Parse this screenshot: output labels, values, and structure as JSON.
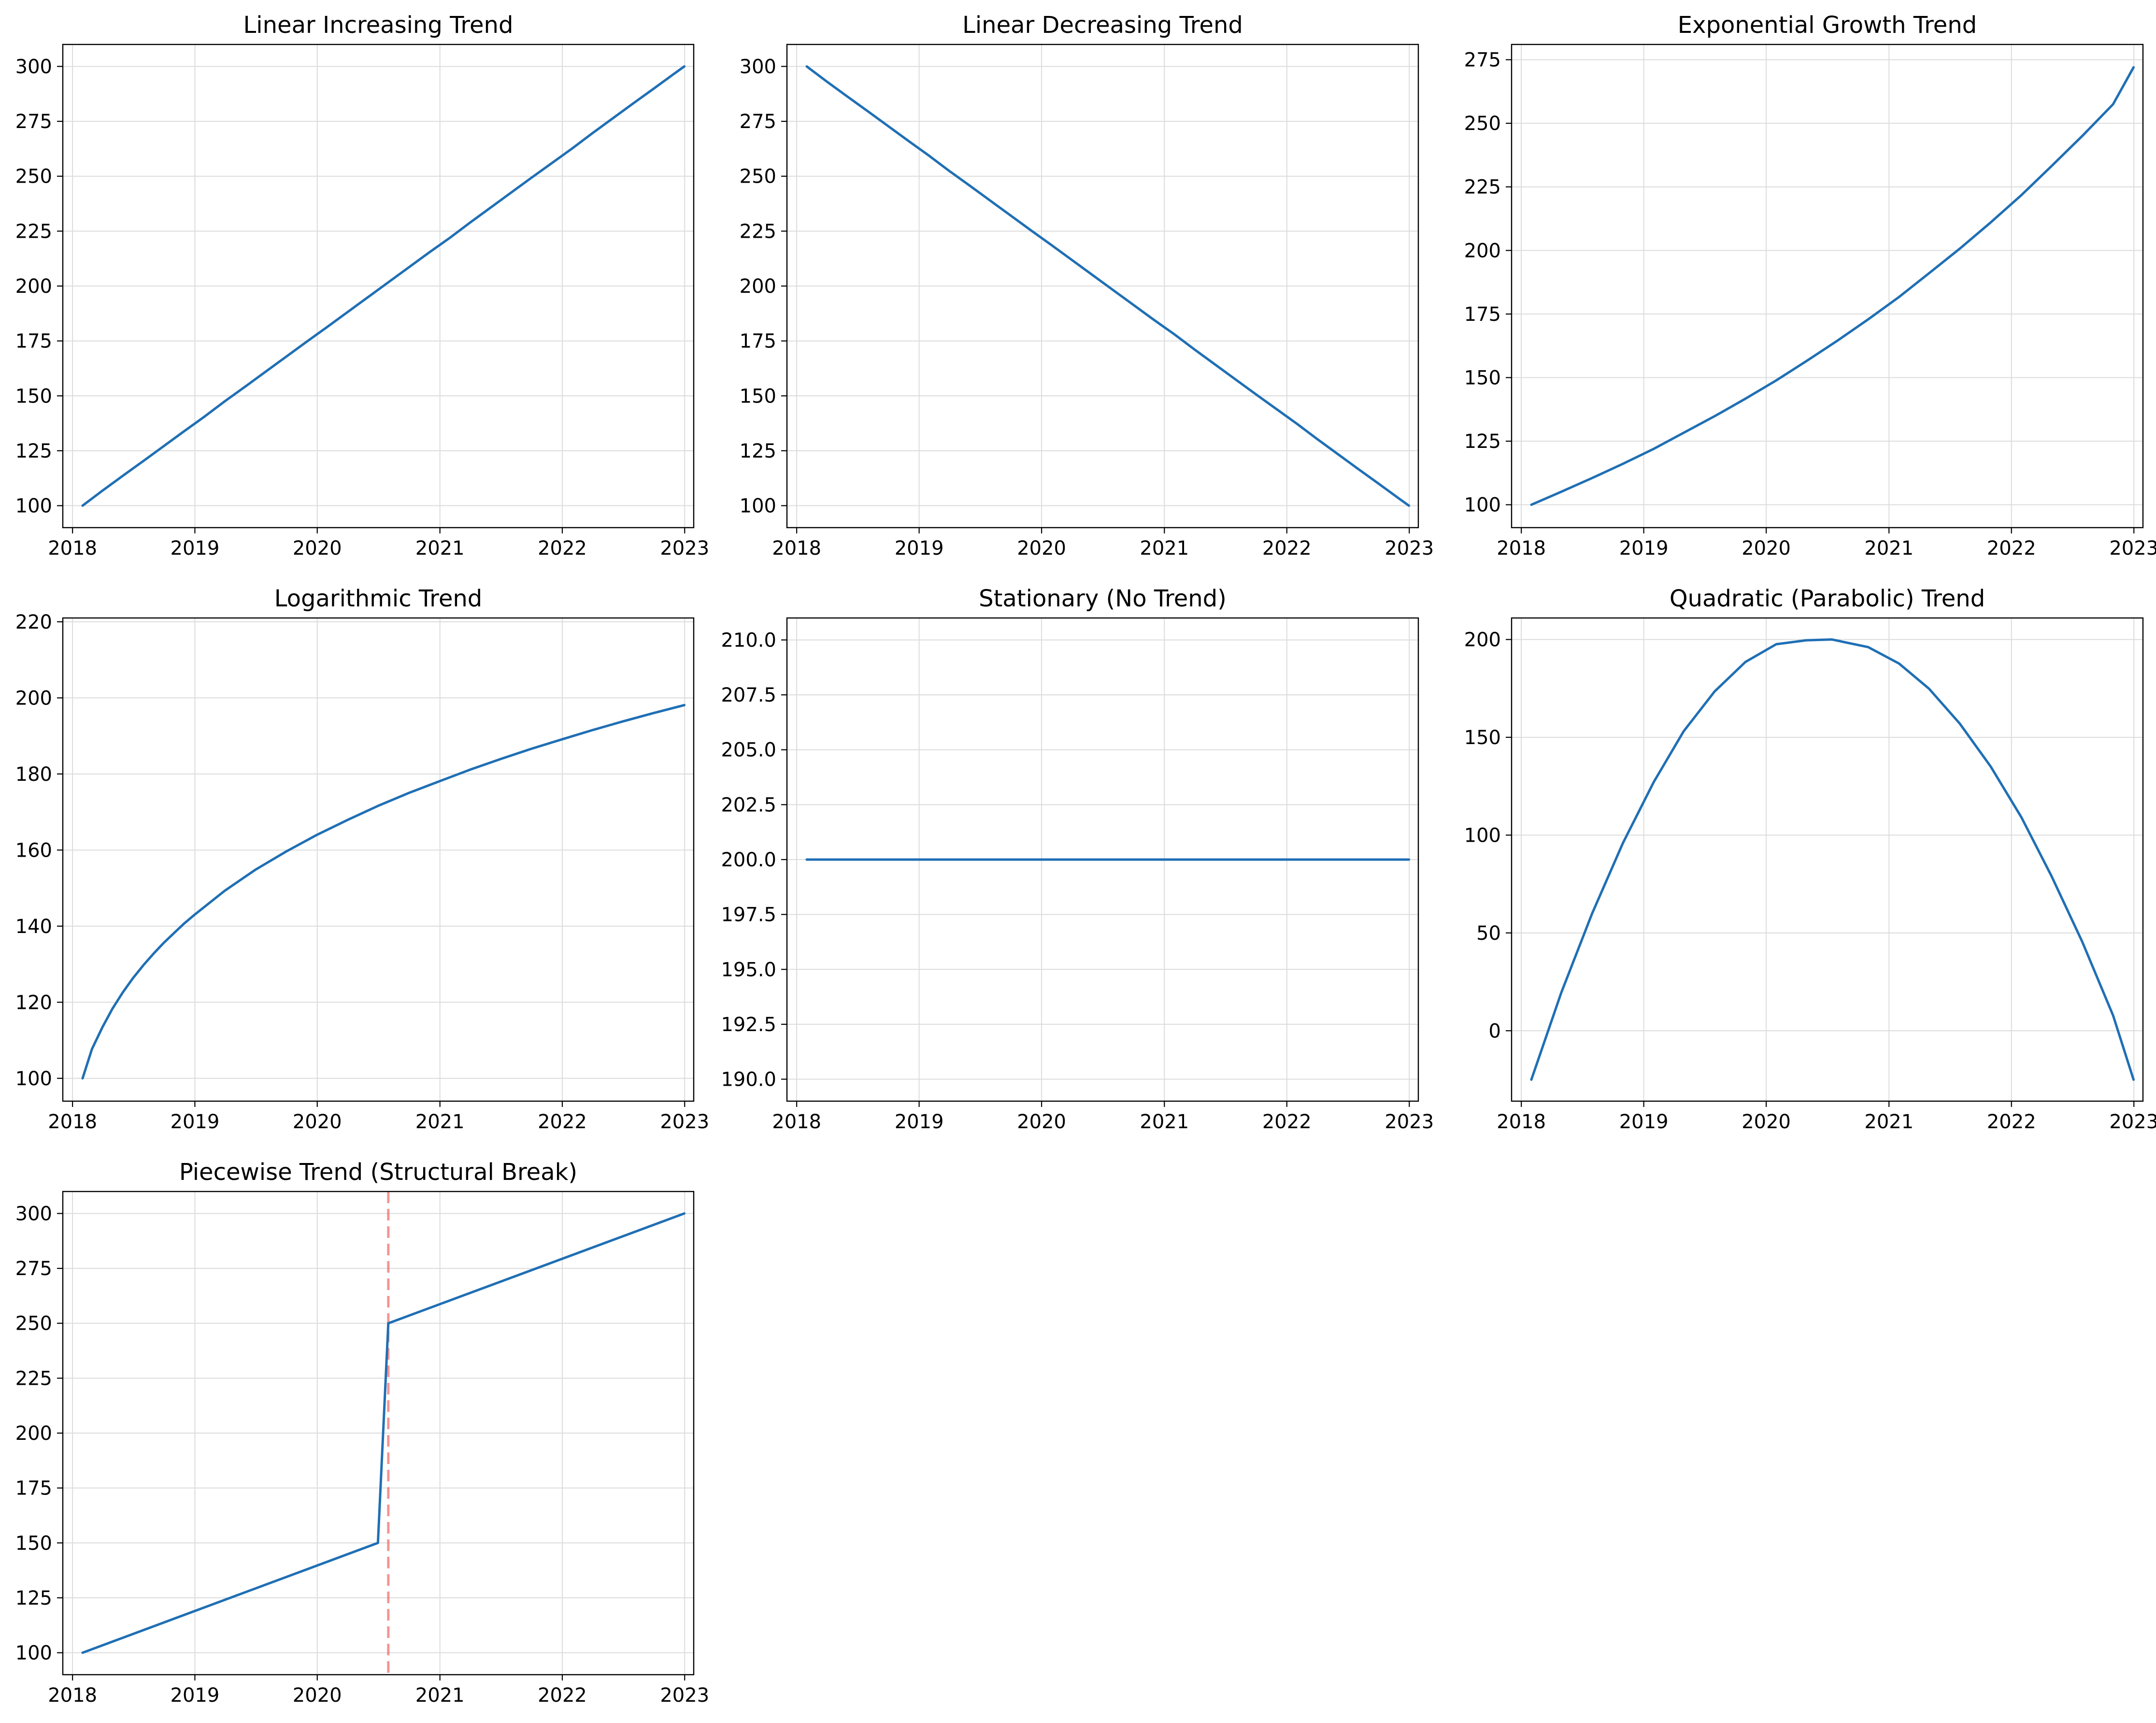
{
  "colors": {
    "series": "#1f6fb4",
    "break_line": "#f15a5a",
    "grid": "#dcdcdc",
    "frame": "#000000",
    "background": "#ffffff"
  },
  "chart_data": [
    {
      "type": "line",
      "title": "Linear Increasing Trend",
      "xlabel": "",
      "ylabel": "",
      "xlim": [
        "2017-12-03",
        "2023-01-28"
      ],
      "ylim": [
        90,
        310
      ],
      "x_ticks": [
        "2018",
        "2019",
        "2020",
        "2021",
        "2022",
        "2023"
      ],
      "y_ticks": [
        "100",
        "125",
        "150",
        "175",
        "200",
        "225",
        "250",
        "275",
        "300"
      ],
      "grid": true,
      "series": [
        {
          "x": [
            "2018-01-31",
            "2018-03-31",
            "2018-05-31",
            "2018-07-31",
            "2018-09-30",
            "2018-11-30",
            "2019-01-31",
            "2019-03-31",
            "2019-05-31",
            "2019-07-31",
            "2019-09-30",
            "2019-11-30",
            "2020-01-31",
            "2020-03-31",
            "2020-05-31",
            "2020-07-31",
            "2020-09-30",
            "2020-11-30",
            "2021-01-31",
            "2021-03-31",
            "2021-05-31",
            "2021-07-31",
            "2021-09-30",
            "2021-11-30",
            "2022-01-31",
            "2022-03-31",
            "2022-05-31",
            "2022-07-31",
            "2022-09-30",
            "2022-11-30",
            "2022-12-31"
          ],
          "values": [
            100,
            106.8,
            113.6,
            120.3,
            127.1,
            133.9,
            140.7,
            147.5,
            154.2,
            161.0,
            167.8,
            174.6,
            181.4,
            188.1,
            194.9,
            201.7,
            208.5,
            215.3,
            222.0,
            228.8,
            235.6,
            242.4,
            249.2,
            255.9,
            262.7,
            269.5,
            276.3,
            283.1,
            289.8,
            296.6,
            300
          ]
        }
      ]
    },
    {
      "type": "line",
      "title": "Linear Decreasing Trend",
      "xlabel": "",
      "ylabel": "",
      "xlim": [
        "2017-12-03",
        "2023-01-28"
      ],
      "ylim": [
        90,
        310
      ],
      "x_ticks": [
        "2018",
        "2019",
        "2020",
        "2021",
        "2022",
        "2023"
      ],
      "y_ticks": [
        "100",
        "125",
        "150",
        "175",
        "200",
        "225",
        "250",
        "275",
        "300"
      ],
      "grid": true,
      "series": [
        {
          "x": [
            "2018-01-31",
            "2018-03-31",
            "2018-05-31",
            "2018-07-31",
            "2018-09-30",
            "2018-11-30",
            "2019-01-31",
            "2019-03-31",
            "2019-05-31",
            "2019-07-31",
            "2019-09-30",
            "2019-11-30",
            "2020-01-31",
            "2020-03-31",
            "2020-05-31",
            "2020-07-31",
            "2020-09-30",
            "2020-11-30",
            "2021-01-31",
            "2021-03-31",
            "2021-05-31",
            "2021-07-31",
            "2021-09-30",
            "2021-11-30",
            "2022-01-31",
            "2022-03-31",
            "2022-05-31",
            "2022-07-31",
            "2022-09-30",
            "2022-11-30",
            "2022-12-31"
          ],
          "values": [
            300,
            293.2,
            286.4,
            279.7,
            272.9,
            266.1,
            259.3,
            252.5,
            245.8,
            239.0,
            232.2,
            225.4,
            218.6,
            211.9,
            205.1,
            198.3,
            191.5,
            184.7,
            178.0,
            171.2,
            164.4,
            157.6,
            150.8,
            144.1,
            137.3,
            130.5,
            123.7,
            116.9,
            110.2,
            103.4,
            100
          ]
        }
      ]
    },
    {
      "type": "line",
      "title": "Exponential Growth Trend",
      "xlabel": "",
      "ylabel": "",
      "xlim": [
        "2017-12-03",
        "2023-01-28"
      ],
      "ylim": [
        91,
        281
      ],
      "x_ticks": [
        "2018",
        "2019",
        "2020",
        "2021",
        "2022",
        "2023"
      ],
      "y_ticks": [
        "100",
        "125",
        "150",
        "175",
        "200",
        "225",
        "250",
        "275"
      ],
      "grid": true,
      "series": [
        {
          "x": [
            "2018-01-31",
            "2018-04-30",
            "2018-07-31",
            "2018-10-31",
            "2019-01-31",
            "2019-04-30",
            "2019-07-31",
            "2019-10-31",
            "2020-01-31",
            "2020-04-30",
            "2020-07-31",
            "2020-10-31",
            "2021-01-31",
            "2021-04-30",
            "2021-07-31",
            "2021-10-31",
            "2022-01-31",
            "2022-04-30",
            "2022-07-31",
            "2022-10-31",
            "2022-12-31"
          ],
          "values": [
            100,
            105.1,
            110.5,
            116.1,
            122.0,
            128.3,
            134.8,
            141.7,
            148.9,
            156.5,
            164.5,
            172.9,
            181.7,
            191.0,
            200.7,
            211.0,
            221.8,
            233.1,
            245.0,
            257.5,
            272
          ]
        }
      ]
    },
    {
      "type": "line",
      "title": "Logarithmic Trend",
      "xlabel": "",
      "ylabel": "",
      "xlim": [
        "2017-12-03",
        "2023-01-28"
      ],
      "ylim": [
        94,
        221
      ],
      "x_ticks": [
        "2018",
        "2019",
        "2020",
        "2021",
        "2022",
        "2023"
      ],
      "y_ticks": [
        "100",
        "120",
        "140",
        "160",
        "180",
        "200",
        "220"
      ],
      "grid": true,
      "series": [
        {
          "x": [
            "2018-01-31",
            "2018-02-28",
            "2018-03-31",
            "2018-04-30",
            "2018-05-31",
            "2018-06-30",
            "2018-07-31",
            "2018-08-31",
            "2018-09-30",
            "2018-10-31",
            "2018-11-30",
            "2018-12-31",
            "2019-03-31",
            "2019-06-30",
            "2019-09-30",
            "2019-12-31",
            "2020-03-31",
            "2020-06-30",
            "2020-09-30",
            "2020-12-31",
            "2021-03-31",
            "2021-06-30",
            "2021-09-30",
            "2021-12-31",
            "2022-03-31",
            "2022-06-30",
            "2022-09-30",
            "2022-12-31"
          ],
          "values": [
            100,
            107.7,
            113.4,
            118.3,
            122.6,
            126.3,
            129.7,
            132.8,
            135.6,
            138.2,
            140.7,
            143.0,
            149.3,
            154.8,
            159.6,
            164.0,
            167.9,
            171.6,
            175.0,
            178.1,
            181.1,
            183.9,
            186.6,
            189.1,
            191.5,
            193.8,
            196.0,
            198.1
          ]
        }
      ]
    },
    {
      "type": "line",
      "title": "Stationary (No Trend)",
      "xlabel": "",
      "ylabel": "",
      "xlim": [
        "2017-12-03",
        "2023-01-28"
      ],
      "ylim": [
        189,
        211
      ],
      "x_ticks": [
        "2018",
        "2019",
        "2020",
        "2021",
        "2022",
        "2023"
      ],
      "y_ticks": [
        "190.0",
        "192.5",
        "195.0",
        "197.5",
        "200.0",
        "202.5",
        "205.0",
        "207.5",
        "210.0"
      ],
      "grid": true,
      "series": [
        {
          "x": [
            "2018-01-31",
            "2022-12-31"
          ],
          "values": [
            200,
            200
          ]
        }
      ]
    },
    {
      "type": "line",
      "title": "Quadratic (Parabolic) Trend",
      "xlabel": "",
      "ylabel": "",
      "xlim": [
        "2017-12-03",
        "2023-01-28"
      ],
      "ylim": [
        -36,
        211
      ],
      "x_ticks": [
        "2018",
        "2019",
        "2020",
        "2021",
        "2022",
        "2023"
      ],
      "y_ticks": [
        "0",
        "50",
        "100",
        "150",
        "200"
      ],
      "grid": true,
      "series": [
        {
          "x": [
            "2018-01-31",
            "2018-04-30",
            "2018-07-31",
            "2018-10-31",
            "2019-01-31",
            "2019-04-30",
            "2019-07-31",
            "2019-10-31",
            "2020-01-31",
            "2020-04-30",
            "2020-07-15",
            "2020-10-31",
            "2021-01-31",
            "2021-04-30",
            "2021-07-31",
            "2021-10-31",
            "2022-01-31",
            "2022-04-30",
            "2022-07-31",
            "2022-10-31",
            "2022-12-31"
          ],
          "values": [
            -25,
            19.4,
            59.9,
            96.0,
            127.2,
            153.1,
            173.4,
            188.5,
            197.6,
            199.6,
            200,
            196.1,
            187.7,
            174.9,
            157.0,
            135.1,
            109.0,
            79.2,
            45.5,
            7.8,
            -25
          ]
        }
      ]
    },
    {
      "type": "line",
      "title": "Piecewise Trend (Structural Break)",
      "xlabel": "",
      "ylabel": "",
      "xlim": [
        "2017-12-03",
        "2023-01-28"
      ],
      "ylim": [
        90,
        310
      ],
      "x_ticks": [
        "2018",
        "2019",
        "2020",
        "2021",
        "2022",
        "2023"
      ],
      "y_ticks": [
        "100",
        "125",
        "150",
        "175",
        "200",
        "225",
        "250",
        "275",
        "300"
      ],
      "grid": true,
      "series": [
        {
          "x": [
            "2018-01-31",
            "2020-06-30",
            "2020-07-31",
            "2022-12-31"
          ],
          "values": [
            100,
            150,
            250,
            300
          ]
        }
      ],
      "vertical_line": {
        "x": "2020-07-31",
        "style": "dashed"
      }
    }
  ]
}
